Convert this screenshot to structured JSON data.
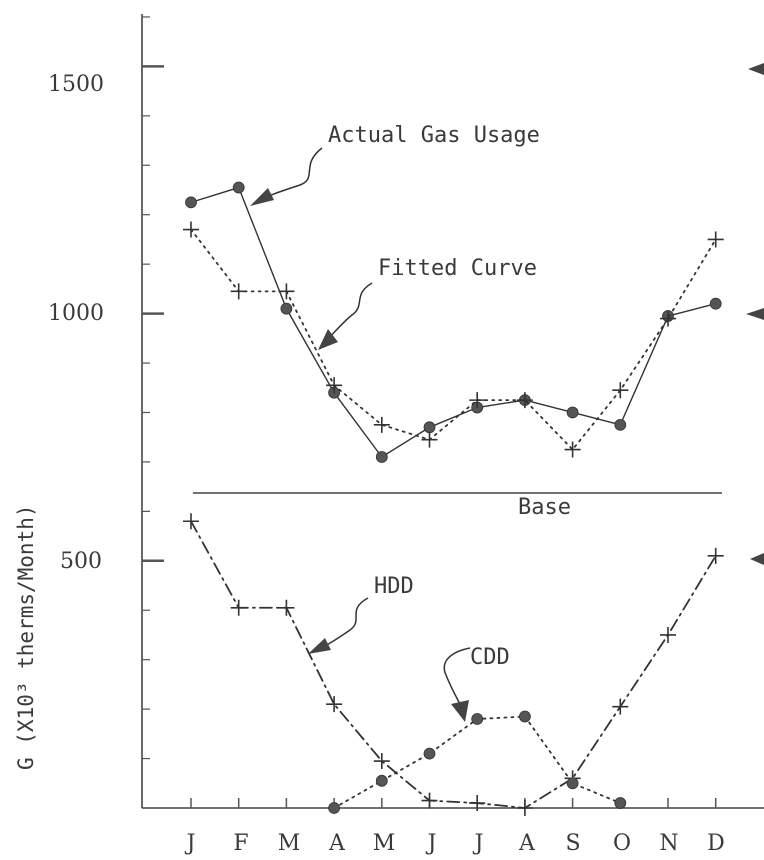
{
  "chart_data": {
    "type": "line",
    "categories": [
      "J",
      "F",
      "M",
      "A",
      "M",
      "J",
      "J",
      "A",
      "S",
      "O",
      "N",
      "D"
    ],
    "ylabel": "G (X10³ therms/Month)",
    "y_ticks": [
      "500",
      "1000",
      "1500"
    ],
    "ylim": [
      0,
      1650
    ],
    "series": [
      {
        "name": "Actual Gas Usage",
        "marker": "dot",
        "line": "solid",
        "values": [
          1225,
          1255,
          1010,
          840,
          710,
          770,
          810,
          825,
          800,
          775,
          995,
          1020
        ]
      },
      {
        "name": "Fitted Curve",
        "marker": "plus",
        "line": "dotted",
        "values": [
          1170,
          1045,
          1045,
          855,
          775,
          745,
          825,
          825,
          725,
          845,
          990,
          1150
        ]
      },
      {
        "name": "HDD",
        "marker": "plus",
        "line": "dashdot",
        "values": [
          580,
          405,
          405,
          210,
          95,
          15,
          10,
          0,
          60,
          205,
          350,
          510
        ]
      },
      {
        "name": "CDD",
        "marker": "dot",
        "line": "dotted",
        "values": [
          null,
          null,
          null,
          0,
          55,
          110,
          180,
          185,
          50,
          10,
          null,
          null
        ]
      }
    ],
    "base": {
      "label": "Base",
      "value": 632
    },
    "annotations": [
      "Actual Gas Usage",
      "Fitted Curve",
      "HDD",
      "CDD"
    ]
  }
}
